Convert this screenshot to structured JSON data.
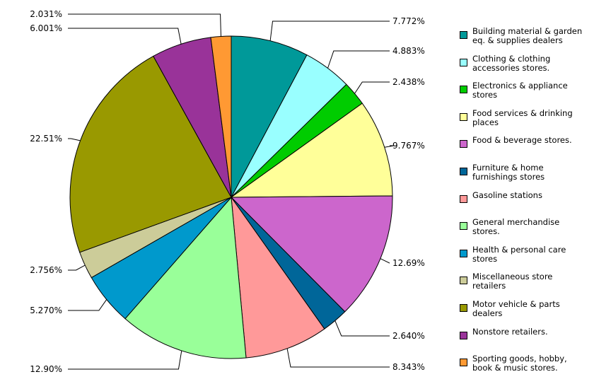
{
  "chart_data": {
    "type": "pie",
    "title": "",
    "slices": [
      {
        "label": "Building material & garden\neq. & supplies dealers",
        "value": 7.772,
        "value_label": "7.772%",
        "color": "#009999"
      },
      {
        "label": "Clothing & clothing\naccessories stores.",
        "value": 4.883,
        "value_label": "4.883%",
        "color": "#99ffff"
      },
      {
        "label": "Electronics & appliance\nstores",
        "value": 2.438,
        "value_label": "2.438%",
        "color": "#00cc00"
      },
      {
        "label": "Food services & drinking\nplaces",
        "value": 9.767,
        "value_label": "9.767%",
        "color": "#ffff99"
      },
      {
        "label": "Food & beverage stores.",
        "value": 12.69,
        "value_label": "12.69%",
        "color": "#cc66cc"
      },
      {
        "label": "Furniture & home\nfurnishings stores",
        "value": 2.64,
        "value_label": "2.640%",
        "color": "#006699"
      },
      {
        "label": "Gasoline stations",
        "value": 8.343,
        "value_label": "8.343%",
        "color": "#ff9999"
      },
      {
        "label": "General merchandise\nstores.",
        "value": 12.9,
        "value_label": "12.90%",
        "color": "#99ff99"
      },
      {
        "label": "Health & personal care\nstores",
        "value": 5.27,
        "value_label": "5.270%",
        "color": "#0099cc"
      },
      {
        "label": "Miscellaneous store\nretailers",
        "value": 2.756,
        "value_label": "2.756%",
        "color": "#cccc99"
      },
      {
        "label": "Motor vehicle & parts\ndealers",
        "value": 22.51,
        "value_label": "22.51%",
        "color": "#999900"
      },
      {
        "label": "Nonstore retailers.",
        "value": 6.001,
        "value_label": "6.001%",
        "color": "#993399"
      },
      {
        "label": "Sporting goods, hobby,\nbook & music stores.",
        "value": 2.031,
        "value_label": "2.031%",
        "color": "#ff9933"
      }
    ],
    "legend_position": "right"
  }
}
